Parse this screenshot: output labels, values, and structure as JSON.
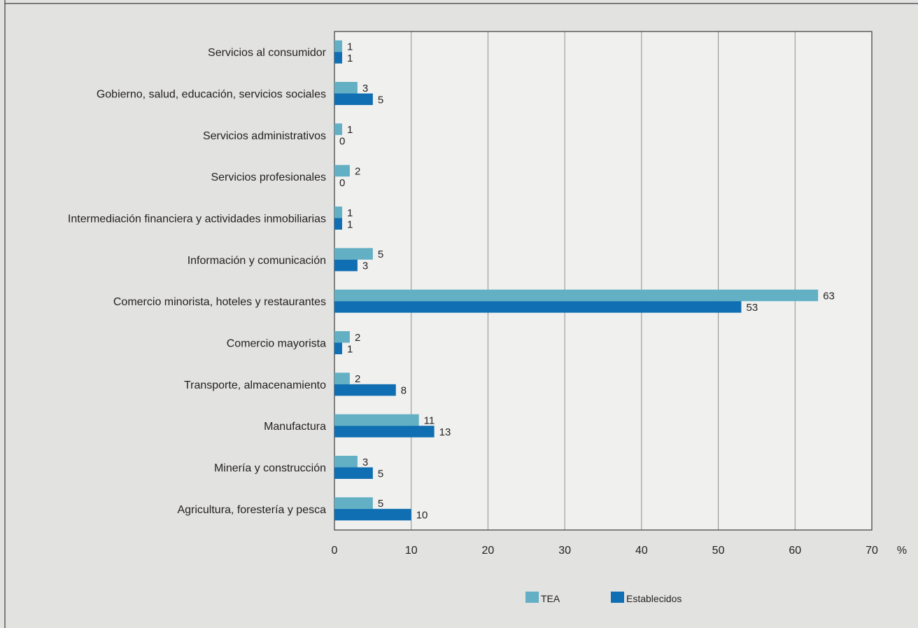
{
  "chart_data": {
    "type": "bar",
    "orientation": "horizontal",
    "categories": [
      "Servicios al consumidor",
      "Gobierno, salud, educación, servicios sociales",
      "Servicios administrativos",
      "Servicios profesionales",
      "Intermediación financiera y actividades inmobiliarias",
      "Información y comunicación",
      "Comercio minorista, hoteles y restaurantes",
      "Comercio mayorista",
      "Transporte, almacenamiento",
      "Manufactura",
      "Minería y construcción",
      "Agricultura, forestería y pesca"
    ],
    "series": [
      {
        "name": "TEA",
        "color": "#63b0c4",
        "values": [
          1,
          3,
          1,
          2,
          1,
          5,
          63,
          2,
          2,
          11,
          3,
          5
        ],
        "labels": [
          "1",
          "3",
          "1",
          "2",
          "1",
          "5",
          "63",
          "2",
          "2",
          "11",
          "3",
          "5"
        ]
      },
      {
        "name": "Establecidos",
        "color": "#0f6fb2",
        "values": [
          1,
          5,
          0,
          0,
          1,
          3,
          53,
          1,
          8,
          13,
          5,
          10
        ],
        "labels": [
          "1",
          "5",
          "0",
          "0",
          "1",
          "3",
          "53",
          "1",
          "8",
          "13",
          "5",
          "10"
        ]
      }
    ],
    "xlim": [
      0,
      70
    ],
    "xticks": [
      0,
      10,
      20,
      30,
      40,
      50,
      60,
      70
    ],
    "xunit": "%",
    "grid": "vertical",
    "legend_position": "bottom",
    "title": "",
    "xlabel": "",
    "ylabel": ""
  },
  "colors": {
    "background": "#e2e2e1",
    "plot_background": "#f0f0ef",
    "gridline": "#8f8f8f",
    "frame": "#3c3c3c",
    "text": "#231f20"
  }
}
